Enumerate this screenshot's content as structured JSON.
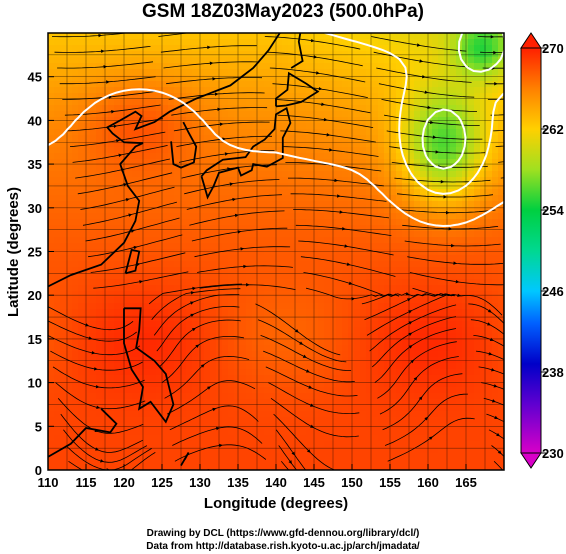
{
  "title": "GSM 18Z03May2023 (500.0hPa)",
  "chart_data": {
    "type": "heatmap",
    "title": "GSM 18Z03May2023 (500.0hPa)",
    "xlabel": "Longitude (degrees)",
    "ylabel": "Latitude  (degrees)",
    "xlim": [
      110,
      170
    ],
    "ylim": [
      0,
      50
    ],
    "x_ticks": [
      110,
      115,
      120,
      125,
      130,
      135,
      140,
      145,
      150,
      155,
      160,
      165
    ],
    "y_ticks": [
      0,
      5,
      10,
      15,
      20,
      25,
      30,
      35,
      40,
      45
    ],
    "grid": true,
    "colorbar": {
      "min": 230,
      "max": 270,
      "ticks": [
        230,
        238,
        246,
        254,
        262,
        270
      ],
      "colors": [
        "#d800c8",
        "#0000c8",
        "#00c8ff",
        "#00d040",
        "#ffd000",
        "#ff2000"
      ]
    },
    "contour_levels": [
      234,
      238,
      242,
      246,
      250,
      254,
      258,
      262,
      266
    ],
    "field": "temperature (K) with wind streamlines"
  },
  "credits": {
    "line1": "Drawing by DCL (https://www.gfd-dennou.org/library/dcl/)",
    "line2": "Data from http://database.rish.kyoto-u.ac.jp/arch/jmadata/"
  }
}
